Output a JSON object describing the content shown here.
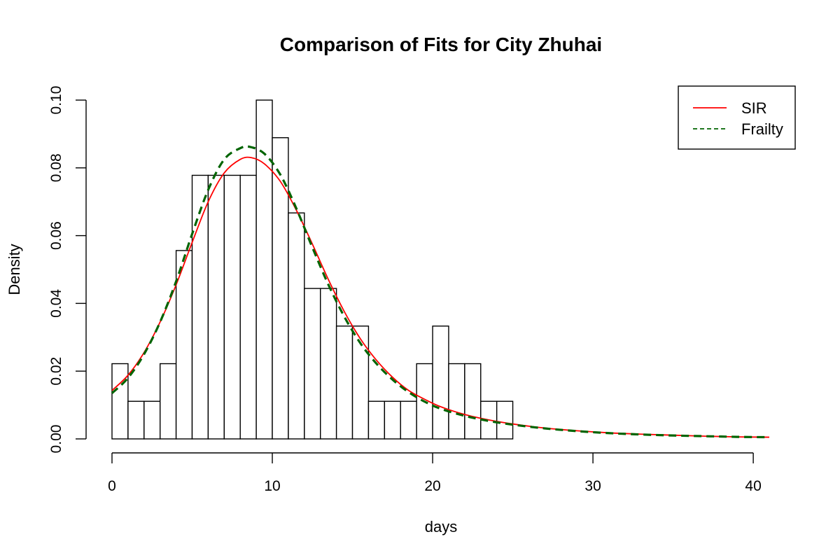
{
  "chart_data": {
    "type": "bar",
    "title": "Comparison of Fits for City Zhuhai",
    "xlabel": "days",
    "ylabel": "Density",
    "xlim": [
      0,
      41
    ],
    "ylim": [
      0,
      0.1
    ],
    "x_ticks": [
      0,
      10,
      20,
      30,
      40
    ],
    "y_ticks": [
      0,
      0.02,
      0.04,
      0.06,
      0.08,
      0.1
    ],
    "x_tick_labels": [
      "0",
      "10",
      "20",
      "30",
      "40"
    ],
    "y_tick_labels": [
      "0.00",
      "0.02",
      "0.04",
      "0.06",
      "0.08",
      "0.10"
    ],
    "histogram": {
      "bin_width": 1,
      "bins": [
        {
          "start": 0,
          "end": 1,
          "density": 0.0222
        },
        {
          "start": 1,
          "end": 2,
          "density": 0.0111
        },
        {
          "start": 2,
          "end": 3,
          "density": 0.0111
        },
        {
          "start": 3,
          "end": 4,
          "density": 0.0222
        },
        {
          "start": 4,
          "end": 5,
          "density": 0.0556
        },
        {
          "start": 5,
          "end": 6,
          "density": 0.0778
        },
        {
          "start": 6,
          "end": 7,
          "density": 0.0778
        },
        {
          "start": 7,
          "end": 8,
          "density": 0.0778
        },
        {
          "start": 8,
          "end": 9,
          "density": 0.0778
        },
        {
          "start": 9,
          "end": 10,
          "density": 0.1
        },
        {
          "start": 10,
          "end": 11,
          "density": 0.0889
        },
        {
          "start": 11,
          "end": 12,
          "density": 0.0667
        },
        {
          "start": 12,
          "end": 13,
          "density": 0.0444
        },
        {
          "start": 13,
          "end": 14,
          "density": 0.0444
        },
        {
          "start": 14,
          "end": 15,
          "density": 0.0333
        },
        {
          "start": 15,
          "end": 16,
          "density": 0.0333
        },
        {
          "start": 16,
          "end": 17,
          "density": 0.0111
        },
        {
          "start": 17,
          "end": 18,
          "density": 0.0111
        },
        {
          "start": 18,
          "end": 19,
          "density": 0.0111
        },
        {
          "start": 19,
          "end": 20,
          "density": 0.0222
        },
        {
          "start": 20,
          "end": 21,
          "density": 0.0333
        },
        {
          "start": 21,
          "end": 22,
          "density": 0.0222
        },
        {
          "start": 22,
          "end": 23,
          "density": 0.0222
        },
        {
          "start": 23,
          "end": 24,
          "density": 0.0111
        },
        {
          "start": 24,
          "end": 25,
          "density": 0.0111
        }
      ]
    },
    "series": [
      {
        "name": "SIR",
        "type": "line",
        "color": "#ff0000",
        "line_style": "solid",
        "x": [
          0,
          1,
          2,
          3,
          4,
          5,
          6,
          7,
          8,
          8.7,
          9.5,
          10.5,
          11.5,
          12.5,
          13.5,
          14.5,
          15.5,
          16.5,
          17.5,
          18.5,
          19.5,
          20.5,
          22,
          23.5,
          25,
          27,
          29,
          31,
          33,
          35,
          37,
          39,
          41
        ],
        "y": [
          0.0143,
          0.0188,
          0.0255,
          0.0345,
          0.0455,
          0.058,
          0.07,
          0.0785,
          0.0825,
          0.083,
          0.0812,
          0.076,
          0.0675,
          0.0575,
          0.047,
          0.0375,
          0.0295,
          0.0232,
          0.0182,
          0.0143,
          0.0117,
          0.0095,
          0.0072,
          0.0056,
          0.0044,
          0.0032,
          0.0024,
          0.0018,
          0.0014,
          0.0011,
          0.0008,
          0.0006,
          0.0005
        ]
      },
      {
        "name": "Frailty",
        "type": "line",
        "color": "#006400",
        "line_style": "dashed",
        "x": [
          0,
          1,
          2,
          3,
          4,
          5,
          6,
          7,
          8,
          8.6,
          9.5,
          10.5,
          11.5,
          12.5,
          13.5,
          14.5,
          15.5,
          16.5,
          17.5,
          18.5,
          19.5,
          20.5,
          22,
          23.5,
          25,
          27,
          29,
          31,
          33,
          35,
          37,
          39,
          41
        ],
        "y": [
          0.0135,
          0.018,
          0.025,
          0.0345,
          0.0465,
          0.0605,
          0.0735,
          0.0825,
          0.0858,
          0.0862,
          0.0842,
          0.078,
          0.068,
          0.0565,
          0.0455,
          0.036,
          0.0282,
          0.0222,
          0.0175,
          0.0138,
          0.011,
          0.0089,
          0.0068,
          0.0053,
          0.0042,
          0.0031,
          0.0023,
          0.0017,
          0.0013,
          0.001,
          0.0008,
          0.0006,
          0.0005
        ]
      }
    ],
    "legend": {
      "placement": "top-right",
      "entries": [
        {
          "label": "SIR",
          "color": "#ff0000",
          "line_style": "solid"
        },
        {
          "label": "Frailty",
          "color": "#006400",
          "line_style": "dashed"
        }
      ]
    },
    "grid": false
  }
}
